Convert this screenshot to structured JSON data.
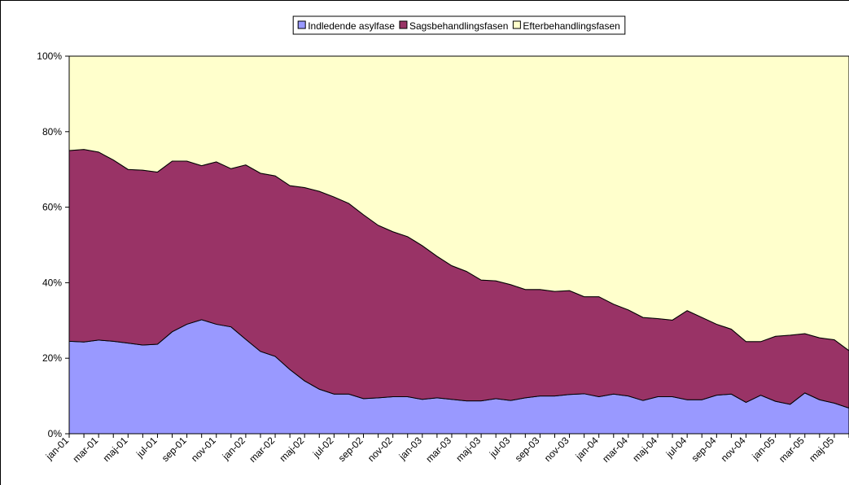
{
  "chart_data": {
    "type": "stacked_area_percent",
    "categories": [
      "jan-01",
      null,
      "mar-01",
      null,
      "maj-01",
      null,
      "jul-01",
      null,
      "sep-01",
      null,
      "nov-01",
      null,
      "jan-02",
      null,
      "mar-02",
      null,
      "maj-02",
      null,
      "jul-02",
      null,
      "sep-02",
      null,
      "nov-02",
      null,
      "jan-03",
      null,
      "mar-03",
      null,
      "maj-03",
      null,
      "jul-03",
      null,
      "sep-03",
      null,
      "nov-03",
      null,
      "jan-04",
      null,
      "mar-04",
      null,
      "maj-04",
      null,
      "jul-04",
      null,
      "sep-04",
      null,
      "nov-04",
      null,
      "jan-05",
      null,
      "mar-05",
      null,
      "maj-05",
      null
    ],
    "series": [
      {
        "name": "Indledende asylfase",
        "color": "#9999ff",
        "values": [
          24.5,
          24.3,
          24.8,
          24.5,
          24,
          23.5,
          23.7,
          27,
          29,
          30.2,
          29,
          28.3,
          25,
          21.8,
          20.5,
          17,
          14,
          11.8,
          10.5,
          10.5,
          9.3,
          9.5,
          9.8,
          9.8,
          9.1,
          9.5,
          9.1,
          8.7,
          8.7,
          9.3,
          8.8,
          9.5,
          10,
          10,
          10.4,
          10.6,
          9.8,
          10.5,
          10,
          8.8,
          9.8,
          9.8,
          9,
          9,
          10.2,
          10.5,
          8.3,
          10.2,
          8.6,
          7.8,
          10.8,
          9,
          8.1,
          6.8
        ]
      },
      {
        "name": "Sagsbehandlingsfasen",
        "color": "#993366",
        "values": [
          50.5,
          51,
          49.8,
          48,
          46,
          46.3,
          45.6,
          45.2,
          43.2,
          40.8,
          43,
          41.9,
          46.2,
          47.2,
          47.8,
          48.7,
          51.2,
          52.4,
          52.2,
          50.5,
          48.7,
          45.7,
          43.7,
          42.4,
          40.7,
          37.5,
          35.4,
          34.3,
          32,
          31.2,
          30.7,
          28.7,
          28.2,
          27.7,
          27.5,
          25.7,
          26.5,
          23.8,
          22.8,
          22,
          20.7,
          20.3,
          23.6,
          21.8,
          18.8,
          17.2,
          16.1,
          14.2,
          17.2,
          18.3,
          15.7,
          16.4,
          16.8,
          15.2
        ]
      },
      {
        "name": "Efterbehandlingsfasen",
        "color": "#ffffcc",
        "values": [
          25,
          24.7,
          25.4,
          27.5,
          30,
          30.2,
          30.7,
          27.8,
          27.8,
          29,
          28,
          29.8,
          28.8,
          31,
          31.7,
          34.3,
          34.8,
          35.8,
          37.3,
          39,
          42,
          44.8,
          46.5,
          47.8,
          50.2,
          53,
          55.5,
          57,
          59.3,
          59.5,
          60.5,
          61.8,
          61.8,
          62.3,
          62.1,
          63.7,
          63.7,
          65.7,
          67.2,
          69.2,
          69.5,
          69.9,
          67.4,
          69.2,
          71,
          72.3,
          75.6,
          75.6,
          74.2,
          73.9,
          73.5,
          74.6,
          75.1,
          78
        ]
      }
    ],
    "ylim": [
      0,
      100
    ],
    "yticks": [
      {
        "value": 0,
        "label": "0%"
      },
      {
        "value": 20,
        "label": "20%"
      },
      {
        "value": 40,
        "label": "40%"
      },
      {
        "value": 60,
        "label": "60%"
      },
      {
        "value": 80,
        "label": "80%"
      },
      {
        "value": 100,
        "label": "100%"
      }
    ],
    "legend": "top"
  }
}
